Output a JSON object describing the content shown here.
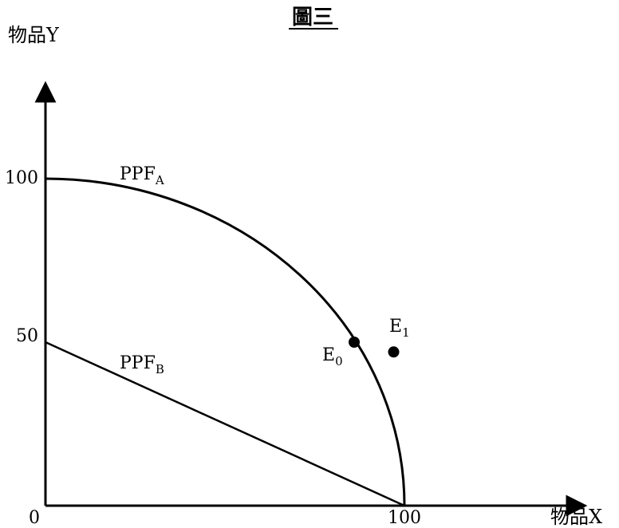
{
  "title": "圖三",
  "chart_data": {
    "type": "line",
    "xlabel": "物品X",
    "ylabel": "物品Y",
    "xlim": [
      0,
      100
    ],
    "ylim": [
      0,
      130
    ],
    "x_ticks": [
      "0",
      "100"
    ],
    "y_ticks": [
      "100",
      "50"
    ],
    "grid": false,
    "series": [
      {
        "name": "PPF",
        "subscript": "A",
        "shape": "quarter-ellipse",
        "x_intercept": 100,
        "y_intercept": 100
      },
      {
        "name": "PPF",
        "subscript": "B",
        "shape": "straight-line",
        "points": [
          [
            0,
            50
          ],
          [
            100,
            0
          ]
        ]
      }
    ],
    "points": [
      {
        "name": "E",
        "subscript": "0",
        "x": 86,
        "y": 50
      },
      {
        "name": "E",
        "subscript": "1",
        "x": 97,
        "y": 47
      }
    ]
  }
}
